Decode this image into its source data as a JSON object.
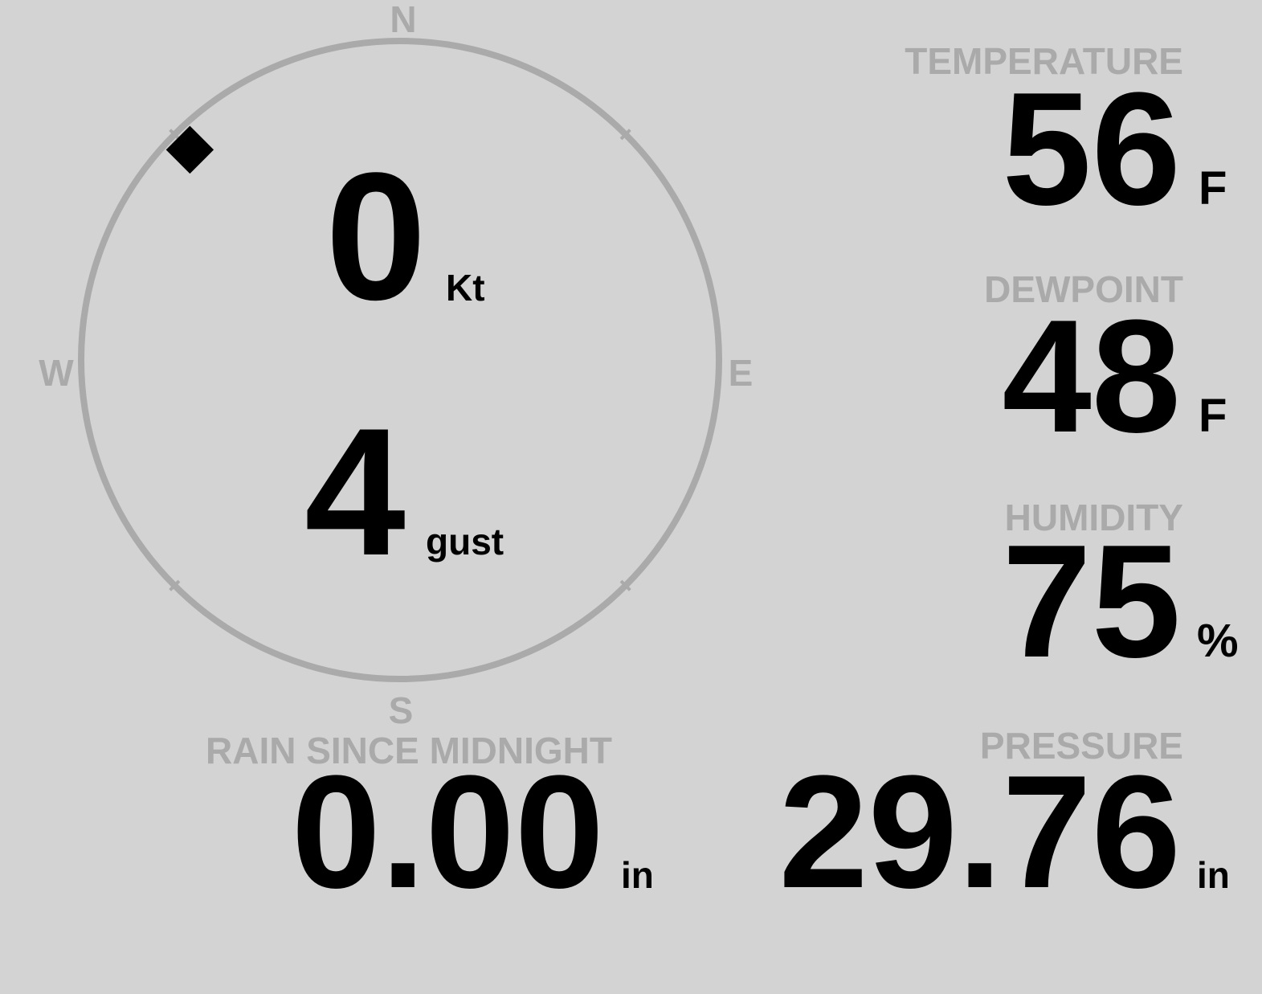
{
  "colors": {
    "background": "#d3d3d3",
    "label": "#aaaaaa",
    "value": "#000000",
    "compass_ring": "#aaaaaa"
  },
  "wind": {
    "speed": "0",
    "speed_unit": "Kt",
    "gust": "4",
    "gust_unit": "gust",
    "direction_deg": 315,
    "compass": {
      "n": "N",
      "e": "E",
      "s": "S",
      "w": "W"
    }
  },
  "temperature": {
    "label": "TEMPERATURE",
    "value": "56",
    "unit": "F"
  },
  "dewpoint": {
    "label": "DEWPOINT",
    "value": "48",
    "unit": "F"
  },
  "humidity": {
    "label": "HUMIDITY",
    "value": "75",
    "unit": "%"
  },
  "rain": {
    "label": "RAIN SINCE MIDNIGHT",
    "value": "0.00",
    "unit": "in"
  },
  "pressure": {
    "label": "PRESSURE",
    "value": "29.76",
    "unit": "in"
  }
}
